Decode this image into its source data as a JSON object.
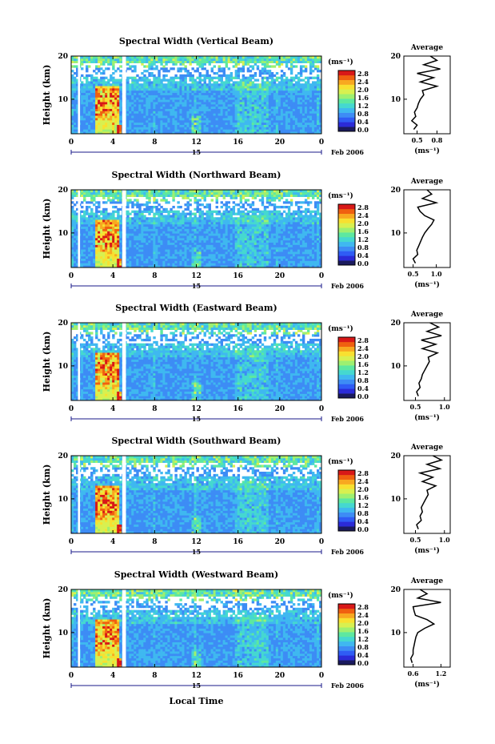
{
  "figure": {
    "xlabel": "Local Time",
    "date_label": "Feb 2006",
    "day_label": "15",
    "ylabel": "Height (km)",
    "unit_label": "(ms⁻¹)",
    "avg_title": "Average",
    "avg_xlabel": "(ms⁻¹)"
  },
  "colorbar": {
    "ticks": [
      "2.8",
      "2.4",
      "2.0",
      "1.6",
      "1.2",
      "0.8",
      "0.4",
      "0.0"
    ],
    "colors": [
      "#1a1a5e",
      "#2b2bd8",
      "#2f5cf5",
      "#3d8cf5",
      "#3fb8f0",
      "#45d8d0",
      "#5de8a0",
      "#9ef070",
      "#d8f050",
      "#f8e030",
      "#f8a820",
      "#f06010",
      "#d81818"
    ]
  },
  "chart_data": [
    {
      "type": "heatmap",
      "title": "Spectral Width (Vertical Beam)",
      "xlim": [
        0,
        24
      ],
      "ylim": [
        2,
        20
      ],
      "xticks": [
        "0",
        "4",
        "8",
        "12",
        "16",
        "20",
        "0"
      ],
      "yticks": [
        "10",
        "20"
      ],
      "profile": {
        "type": "line",
        "xticks": [
          "0.5",
          "0.8"
        ],
        "xlim": [
          0.3,
          1.0
        ],
        "height": [
          3,
          4,
          5,
          6,
          7,
          8,
          9,
          10,
          11,
          12,
          13,
          14,
          15,
          16,
          17,
          18,
          19,
          20
        ],
        "values": [
          0.45,
          0.5,
          0.42,
          0.48,
          0.46,
          0.5,
          0.52,
          0.55,
          0.6,
          0.58,
          0.8,
          0.55,
          0.75,
          0.5,
          0.85,
          0.6,
          0.8,
          0.7
        ]
      }
    },
    {
      "type": "heatmap",
      "title": "Spectral Width (Northward Beam)",
      "xlim": [
        0,
        24
      ],
      "ylim": [
        2,
        20
      ],
      "xticks": [
        "0",
        "4",
        "8",
        "12",
        "16",
        "20",
        "0"
      ],
      "yticks": [
        "10",
        "20"
      ],
      "profile": {
        "type": "line",
        "xticks": [
          "0.5",
          "1.0"
        ],
        "xlim": [
          0.3,
          1.3
        ],
        "height": [
          3,
          4,
          5,
          6,
          7,
          8,
          9,
          10,
          11,
          12,
          13,
          14,
          15,
          16,
          17,
          18,
          19,
          20
        ],
        "values": [
          0.55,
          0.5,
          0.6,
          0.58,
          0.62,
          0.66,
          0.7,
          0.75,
          0.82,
          0.9,
          0.95,
          0.75,
          0.65,
          0.6,
          1.0,
          0.7,
          0.9,
          0.8
        ]
      }
    },
    {
      "type": "heatmap",
      "title": "Spectral Width (Eastward Beam)",
      "xlim": [
        0,
        24
      ],
      "ylim": [
        2,
        20
      ],
      "xticks": [
        "0",
        "4",
        "8",
        "12",
        "16",
        "20",
        "0"
      ],
      "yticks": [
        "10",
        "20"
      ],
      "profile": {
        "type": "line",
        "xticks": [
          "0.5",
          "1.0"
        ],
        "xlim": [
          0.3,
          1.1
        ],
        "height": [
          3,
          4,
          5,
          6,
          7,
          8,
          9,
          10,
          11,
          12,
          13,
          14,
          15,
          16,
          17,
          18,
          19,
          20
        ],
        "values": [
          0.55,
          0.52,
          0.58,
          0.56,
          0.6,
          0.62,
          0.66,
          0.7,
          0.74,
          0.72,
          0.88,
          0.62,
          0.85,
          0.6,
          0.95,
          0.7,
          0.9,
          0.75
        ]
      }
    },
    {
      "type": "heatmap",
      "title": "Spectral Width (Southward Beam)",
      "xlim": [
        0,
        24
      ],
      "ylim": [
        2,
        20
      ],
      "xticks": [
        "0",
        "4",
        "8",
        "12",
        "16",
        "20",
        "0"
      ],
      "yticks": [
        "10",
        "20"
      ],
      "profile": {
        "type": "line",
        "xticks": [
          "0.5",
          "1.0"
        ],
        "xlim": [
          0.3,
          1.1
        ],
        "height": [
          3,
          4,
          5,
          6,
          7,
          8,
          9,
          10,
          11,
          12,
          13,
          14,
          15,
          16,
          17,
          18,
          19,
          20
        ],
        "values": [
          0.55,
          0.52,
          0.6,
          0.58,
          0.62,
          0.6,
          0.64,
          0.68,
          0.72,
          0.7,
          0.85,
          0.62,
          0.8,
          0.58,
          0.92,
          0.7,
          0.95,
          0.8
        ]
      }
    },
    {
      "type": "heatmap",
      "title": "Spectral Width (Westward Beam)",
      "xlim": [
        0,
        24
      ],
      "ylim": [
        2,
        20
      ],
      "xticks": [
        "0",
        "4",
        "8",
        "12",
        "16",
        "20",
        "0"
      ],
      "yticks": [
        "10",
        "20"
      ],
      "profile": {
        "type": "line",
        "xticks": [
          "0.6",
          "1.2"
        ],
        "xlim": [
          0.4,
          1.4
        ],
        "height": [
          3,
          4,
          5,
          6,
          7,
          8,
          9,
          10,
          11,
          12,
          13,
          14,
          15,
          16,
          17,
          18,
          19,
          20
        ],
        "values": [
          0.58,
          0.55,
          0.6,
          0.6,
          0.62,
          0.64,
          0.66,
          0.7,
          0.85,
          1.05,
          0.9,
          0.65,
          0.62,
          0.6,
          1.2,
          0.7,
          0.9,
          0.75
        ]
      }
    }
  ]
}
